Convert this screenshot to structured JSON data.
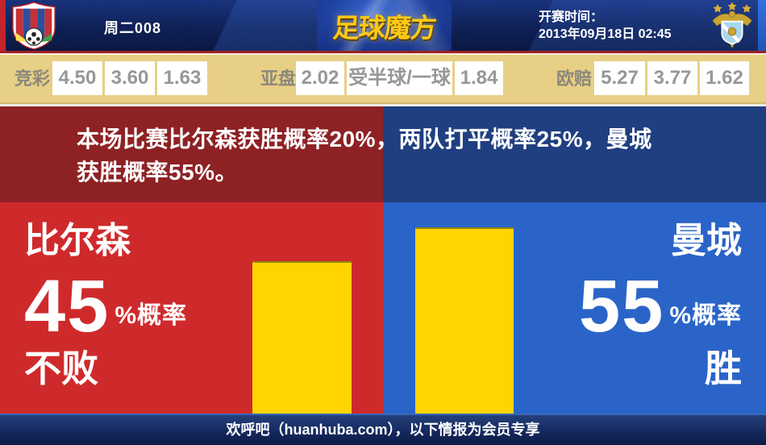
{
  "header": {
    "match_code": "周二008",
    "site_logo": "足球魔方",
    "kickoff_label": "开赛时间：",
    "kickoff_time": "2013年09月18日 02:45",
    "home_crest": "fc-viktoria-plzen-crest",
    "away_crest": "manchester-city-crest"
  },
  "odds_bar": {
    "groups": [
      {
        "label": "竞彩",
        "values": [
          "4.50",
          "3.60",
          "1.63"
        ]
      },
      {
        "label": "亚盘",
        "values": [
          "2.02",
          "受半球/一球",
          "1.84"
        ]
      },
      {
        "label": "欧赔",
        "values": [
          "5.27",
          "3.77",
          "1.62"
        ]
      }
    ]
  },
  "summary": {
    "line1": "本场比赛比尔森获胜概率20%，两队打平概率25%，曼城",
    "line2": "获胜概率55%。",
    "home_win_pct": 20,
    "draw_pct": 25,
    "away_win_pct": 55
  },
  "chart_data": {
    "type": "bar",
    "categories": [
      "比尔森 不败",
      "曼城 胜"
    ],
    "values": [
      45,
      55
    ],
    "unit": "%",
    "bar_color": "#ffd400",
    "axes": "none"
  },
  "left_panel": {
    "team": "比尔森",
    "value": "45",
    "unit": "%概率",
    "outcome": "不败",
    "pct": 45
  },
  "right_panel": {
    "team": "曼城",
    "value": "55",
    "unit": "%概率",
    "outcome": "胜",
    "pct": 55
  },
  "footer": {
    "text": "欢呼吧（huanhuba.com），以下情报为会员专享"
  },
  "colors": {
    "home_red": "#cf2a2b",
    "away_blue": "#2a64c8",
    "bar_yellow": "#ffd400",
    "band_maroon": "#8e2124",
    "band_navy": "#203f80",
    "odds_tan": "#e8cf86",
    "header_navy": "#0c1f55",
    "logo_gold": "#ffc916"
  }
}
